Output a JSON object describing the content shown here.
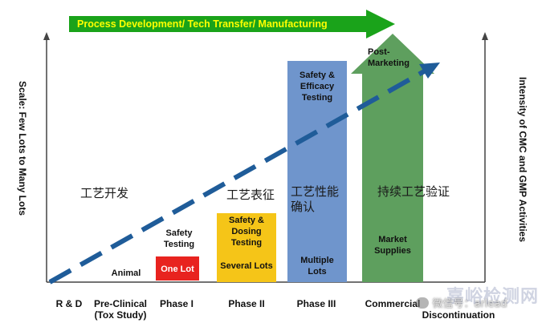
{
  "banner": {
    "label": "Process Development/ Tech Transfer/ Manufacturing",
    "color": "#1aa31a",
    "text_color": "#ffff00"
  },
  "left_axis_label": "Scale: Few Lots to Many Lots",
  "right_axis_label": "Intensity of CMC and GMP Activities",
  "phases": [
    {
      "label": "R & D"
    },
    {
      "label": "Pre-Clinical\n(Tox Study)"
    },
    {
      "label": "Phase I"
    },
    {
      "label": "Phase II"
    },
    {
      "label": "Phase III"
    },
    {
      "label": "Commercial"
    },
    {
      "label": "Discontinuation"
    }
  ],
  "stage_notes": {
    "animal": "Animal",
    "phase1_testing": "Safety\nTesting",
    "phase1_box": "One Lot",
    "phase2_testing": "Safety &\nDosing\nTesting",
    "phase2_lots": "Several Lots",
    "phase3_testing": "Safety &\nEfficacy\nTesting",
    "phase3_lots": "Multiple\nLots",
    "commercial_top": "Post-\nMarketing",
    "commercial_supply": "Market\nSupplies"
  },
  "chinese_labels": {
    "process_dev": "工艺开发",
    "process_char": "工艺表征",
    "process_perf": "工艺性能\n确认",
    "continued_verif": "持续工艺验证"
  },
  "watermarks": {
    "site": "嘉峪检测网",
    "wechat": "微信号：arlead"
  },
  "colors": {
    "phase1_box": "#e8231f",
    "phase2_box": "#f5c518",
    "phase3_box": "#6f95cc",
    "commercial_arrow": "#5e9f5e",
    "trend_arrow": "#1f5c99"
  }
}
